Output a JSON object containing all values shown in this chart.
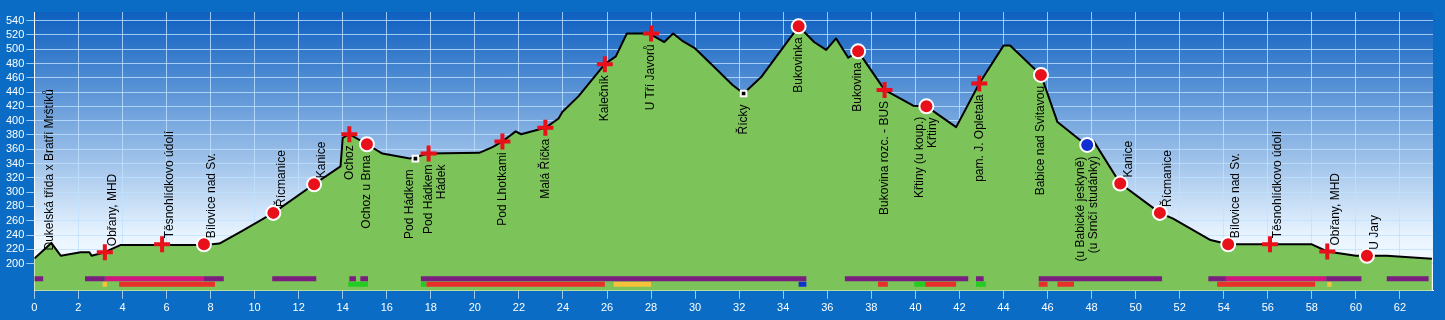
{
  "chart_data": {
    "type": "area",
    "xlim": [
      0,
      63.5
    ],
    "xticks": [
      0,
      2,
      4,
      6,
      8,
      10,
      12,
      14,
      16,
      18,
      20,
      22,
      24,
      26,
      28,
      30,
      32,
      34,
      36,
      38,
      40,
      42,
      44,
      46,
      48,
      50,
      52,
      54,
      56,
      58,
      60,
      62
    ],
    "ylim": [
      162,
      552
    ],
    "yticks": [
      200,
      220,
      240,
      260,
      280,
      300,
      320,
      340,
      360,
      380,
      400,
      420,
      440,
      460,
      480,
      500,
      520,
      540
    ],
    "grid": true,
    "legend": false,
    "series": [
      {
        "type": "area",
        "color": "#7cc35a",
        "x": [
          0,
          0.77,
          1.2,
          2.1,
          2.5,
          2.6,
          3.2,
          3.9,
          7.7,
          8.4,
          9.5,
          10.85,
          12.7,
          13.9,
          14.0,
          14.3,
          15.1,
          15.8,
          17.05,
          17.9,
          20.2,
          20.8,
          21.25,
          21.85,
          22.1,
          23.2,
          23.8,
          23.97,
          24.7,
          25.9,
          26.4,
          26.9,
          27.9,
          28.6,
          29.0,
          29.4,
          30.0,
          30.9,
          31.7,
          32.2,
          33.0,
          34.7,
          35.4,
          35.95,
          36.4,
          36.95,
          37.4,
          38.6,
          39.9,
          40.5,
          41.85,
          42.9,
          44.0,
          44.3,
          45.7,
          46.45,
          47.8,
          48.1,
          49.3,
          51.1,
          51.7,
          53.4,
          54.2,
          58.0,
          58.7,
          60.0,
          60.5,
          61.4,
          63.45
        ],
        "values": [
          207,
          229,
          211,
          216,
          216,
          211,
          216,
          226,
          226,
          228,
          247,
          271,
          311,
          336,
          376,
          381,
          367,
          354,
          347,
          354,
          355,
          363,
          371,
          385,
          381,
          390,
          403,
          412,
          434,
          479,
          490,
          522,
          522,
          510,
          522,
          512,
          501,
          474,
          450,
          438,
          461,
          532,
          510,
          499,
          515,
          488,
          497,
          443,
          421,
          420,
          391,
          452,
          505,
          505,
          464,
          398,
          365,
          371,
          312,
          271,
          263,
          233,
          227,
          227,
          217,
          211,
          211,
          211,
          207
        ]
      },
      {
        "type": "scatter",
        "marker": "cross",
        "color": "#e8101a",
        "x": [
          3.2,
          5.8,
          14.3,
          17.9,
          21.25,
          23.2,
          25.9,
          28.0,
          38.6,
          42.9,
          56.1,
          58.7
        ],
        "values": [
          216,
          227,
          381,
          354,
          371,
          390,
          479,
          522,
          443,
          452,
          227,
          217
        ]
      },
      {
        "type": "scatter",
        "marker": "circle",
        "color": "#e8101a",
        "x": [
          7.7,
          10.85,
          12.7,
          15.1,
          34.7,
          37.4,
          40.5,
          45.7,
          49.3,
          51.1,
          54.2,
          60.5
        ],
        "values": [
          227,
          271,
          311,
          367,
          532,
          497,
          420,
          464,
          312,
          271,
          227,
          211
        ]
      },
      {
        "type": "scatter",
        "marker": "square",
        "color": "#000000",
        "x": [
          17.3,
          32.2
        ],
        "values": [
          347,
          438
        ]
      },
      {
        "type": "scatter",
        "marker": "circle",
        "color": "#1030d0",
        "x": [
          47.8
        ],
        "values": [
          366
        ]
      },
      {
        "type": "line",
        "color": "#7a1f7f",
        "x": [
          0,
          0.4,
          1.3,
          2.3,
          3.2,
          5.4,
          7.7,
          8.6,
          9.7,
          10.8,
          12.8,
          13.5,
          14.3,
          14.6,
          14.7,
          14.8,
          15.15,
          16.3,
          17.55,
          35.05,
          35.9,
          36.8,
          42.4,
          42.6,
          42.75,
          43.1,
          44.3,
          45.6,
          51.2,
          52.2,
          53.3,
          54.1,
          56.4,
          58.65,
          60.25,
          60.8,
          61.4,
          63.3
        ],
        "values": [
          179,
          179,
          null,
          179,
          179,
          null,
          179,
          179,
          null,
          179,
          179,
          null,
          179,
          179,
          null,
          179,
          179,
          null,
          179,
          179,
          null,
          179,
          179,
          null,
          179,
          179,
          null,
          179,
          179,
          null,
          179,
          179,
          null,
          179,
          179,
          null,
          179,
          179
        ]
      },
      {
        "type": "line",
        "color": "#d0157e",
        "x": [
          3.2,
          7.7,
          30,
          54.1,
          58.65
        ],
        "values": [
          179,
          179,
          null,
          179,
          179
        ]
      },
      {
        "type": "line",
        "color": "#e8302a",
        "x": [
          3.85,
          8.2,
          13,
          17.8,
          25.9,
          32,
          38.3,
          38.75,
          39.6,
          40.45,
          41.85,
          43.7,
          45.6,
          46.0,
          46.2,
          46.45,
          47.2,
          50,
          53.7,
          58.15
        ],
        "values": [
          171,
          171,
          null,
          171,
          171,
          null,
          171,
          171,
          null,
          171,
          171,
          null,
          171,
          171,
          null,
          171,
          171,
          null,
          171,
          171
        ]
      },
      {
        "type": "line",
        "color": "#f5c23a",
        "x": [
          3.1,
          3.3,
          15,
          26.3,
          28.0,
          43,
          58.7,
          58.9
        ],
        "values": [
          171,
          171,
          null,
          171,
          171,
          null,
          171,
          171
        ]
      },
      {
        "type": "line",
        "color": "#22cc22",
        "x": [
          14.25,
          15.15,
          16.3,
          17.55,
          17.8,
          29,
          39.95,
          40.45,
          41.6,
          42.75,
          43.2
        ],
        "values": [
          171,
          171,
          null,
          171,
          171,
          null,
          171,
          171,
          null,
          171,
          171
        ]
      },
      {
        "type": "line",
        "color": "#1030d0",
        "x": [
          34.7,
          35.05
        ],
        "values": [
          171,
          171
        ]
      }
    ],
    "annotations": [
      {
        "text": "Dukelská třída x Bratří Mrštíků",
        "x": 0.35,
        "y": 210
      },
      {
        "text": "Obřany, MHD",
        "x": 3.2,
        "y": 216
      },
      {
        "text": "Těsnohlídkovo údolí",
        "x": 5.8,
        "y": 227
      },
      {
        "text": "Bílovice nad Sv.",
        "x": 7.7,
        "y": 227
      },
      {
        "text": "Řícmanice",
        "x": 10.85,
        "y": 271
      },
      {
        "text": "Kanice",
        "x": 12.7,
        "y": 311
      },
      {
        "text": "Ochoz",
        "x": 14.3,
        "y": 381
      },
      {
        "text": "Ochoz u Brna",
        "x": 15.1,
        "y": 367
      },
      {
        "text": "Pod Hádkem",
        "x": 17.05,
        "y": 347
      },
      {
        "text": "Pod Hádkem",
        "x": 17.9,
        "y": 354
      },
      {
        "text": "Hádek",
        "x": 17.9,
        "y": 354
      },
      {
        "text": "Pod Lhotkami",
        "x": 21.25,
        "y": 371
      },
      {
        "text": "Malá Říčka",
        "x": 23.2,
        "y": 390
      },
      {
        "text": "Kalečník",
        "x": 25.9,
        "y": 479
      },
      {
        "text": "U Tří Javorů",
        "x": 28.0,
        "y": 522
      },
      {
        "text": "Řícky",
        "x": 32.2,
        "y": 438
      },
      {
        "text": "Bukovinka",
        "x": 34.7,
        "y": 532
      },
      {
        "text": "Bukovina",
        "x": 37.4,
        "y": 497
      },
      {
        "text": "Bukovina rozc. - BUS",
        "x": 38.6,
        "y": 443
      },
      {
        "text": "Křtiny (u koup.)",
        "x": 40.2,
        "y": 421
      },
      {
        "text": "Křtiny",
        "x": 40.5,
        "y": 420
      },
      {
        "text": "pam. J. Opletala",
        "x": 42.9,
        "y": 452
      },
      {
        "text": "Babice nad Svitavou",
        "x": 45.7,
        "y": 464
      },
      {
        "text": "(u Babické jeskyně)",
        "x": 47.5,
        "y": 365
      },
      {
        "text": "(u Srnčí studánky)",
        "x": 47.8,
        "y": 366
      },
      {
        "text": "Kanice",
        "x": 49.3,
        "y": 312
      },
      {
        "text": "Řícmanice",
        "x": 51.1,
        "y": 271
      },
      {
        "text": "Bílovice nad Sv.",
        "x": 54.2,
        "y": 227
      },
      {
        "text": "Těsnohlídkovo údolí",
        "x": 56.1,
        "y": 227
      },
      {
        "text": "Obřany, MHD",
        "x": 58.7,
        "y": 217
      },
      {
        "text": "U Jary",
        "x": 60.5,
        "y": 211
      }
    ]
  }
}
